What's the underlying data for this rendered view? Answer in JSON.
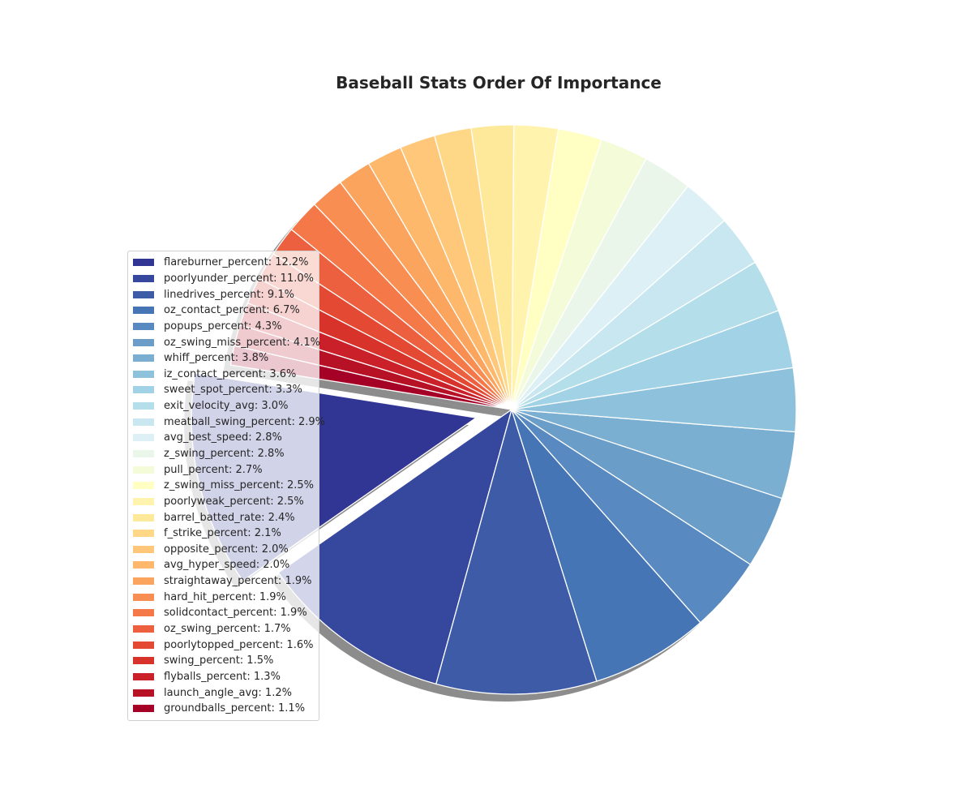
{
  "chart_data": {
    "type": "pie",
    "title": "Baseball Stats Order Of Importance",
    "legend_position": "left",
    "slices": [
      {
        "label": "flareburner_percent: 12.2%",
        "value": 12.2,
        "color": "#313695"
      },
      {
        "label": "poorlyunder_percent: 11.0%",
        "value": 11.0,
        "color": "#36479e"
      },
      {
        "label": "linedrives_percent: 9.1%",
        "value": 9.1,
        "color": "#3e5ba8"
      },
      {
        "label": "oz_contact_percent: 6.7%",
        "value": 6.7,
        "color": "#4575b4"
      },
      {
        "label": "popups_percent: 4.3%",
        "value": 4.3,
        "color": "#5889c0"
      },
      {
        "label": "oz_swing_miss_percent: 4.1%",
        "value": 4.1,
        "color": "#6a9ec8"
      },
      {
        "label": "whiff_percent: 3.8%",
        "value": 3.8,
        "color": "#7bafd2"
      },
      {
        "label": "iz_contact_percent: 3.6%",
        "value": 3.6,
        "color": "#8ec2dc"
      },
      {
        "label": "sweet_spot_percent: 3.3%",
        "value": 3.3,
        "color": "#a2d2e6"
      },
      {
        "label": "exit_velocity_avg: 3.0%",
        "value": 3.0,
        "color": "#b5deeb"
      },
      {
        "label": "meatball_swing_percent: 2.9%",
        "value": 2.9,
        "color": "#c8e7f0"
      },
      {
        "label": "avg_best_speed: 2.8%",
        "value": 2.8,
        "color": "#dcf0f6"
      },
      {
        "label": "z_swing_percent: 2.8%",
        "value": 2.8,
        "color": "#ebf6eb"
      },
      {
        "label": "pull_percent: 2.7%",
        "value": 2.7,
        "color": "#f3fbd8"
      },
      {
        "label": "z_swing_miss_percent: 2.5%",
        "value": 2.5,
        "color": "#fffec3"
      },
      {
        "label": "poorlyweak_percent: 2.5%",
        "value": 2.5,
        "color": "#fff3ae"
      },
      {
        "label": "barrel_batted_rate: 2.4%",
        "value": 2.4,
        "color": "#fee89a"
      },
      {
        "label": "f_strike_percent: 2.1%",
        "value": 2.1,
        "color": "#fed887"
      },
      {
        "label": "opposite_percent: 2.0%",
        "value": 2.0,
        "color": "#fec779"
      },
      {
        "label": "avg_hyper_speed: 2.0%",
        "value": 2.0,
        "color": "#fdb86b"
      },
      {
        "label": "straightaway_percent: 1.9%",
        "value": 1.9,
        "color": "#fba45e"
      },
      {
        "label": "hard_hit_percent: 1.9%",
        "value": 1.9,
        "color": "#f88e52"
      },
      {
        "label": "solidcontact_percent: 1.9%",
        "value": 1.9,
        "color": "#f47848"
      },
      {
        "label": "oz_swing_percent: 1.7%",
        "value": 1.7,
        "color": "#ec603f"
      },
      {
        "label": "poorlytopped_percent: 1.6%",
        "value": 1.6,
        "color": "#e34933"
      },
      {
        "label": "swing_percent: 1.5%",
        "value": 1.5,
        "color": "#d7332a"
      },
      {
        "label": "flyballs_percent: 1.3%",
        "value": 1.3,
        "color": "#c92029"
      },
      {
        "label": "launch_angle_avg: 1.2%",
        "value": 1.2,
        "color": "#b71126"
      },
      {
        "label": "groundballs_percent: 1.1%",
        "value": 1.1,
        "color": "#a50026"
      }
    ]
  }
}
